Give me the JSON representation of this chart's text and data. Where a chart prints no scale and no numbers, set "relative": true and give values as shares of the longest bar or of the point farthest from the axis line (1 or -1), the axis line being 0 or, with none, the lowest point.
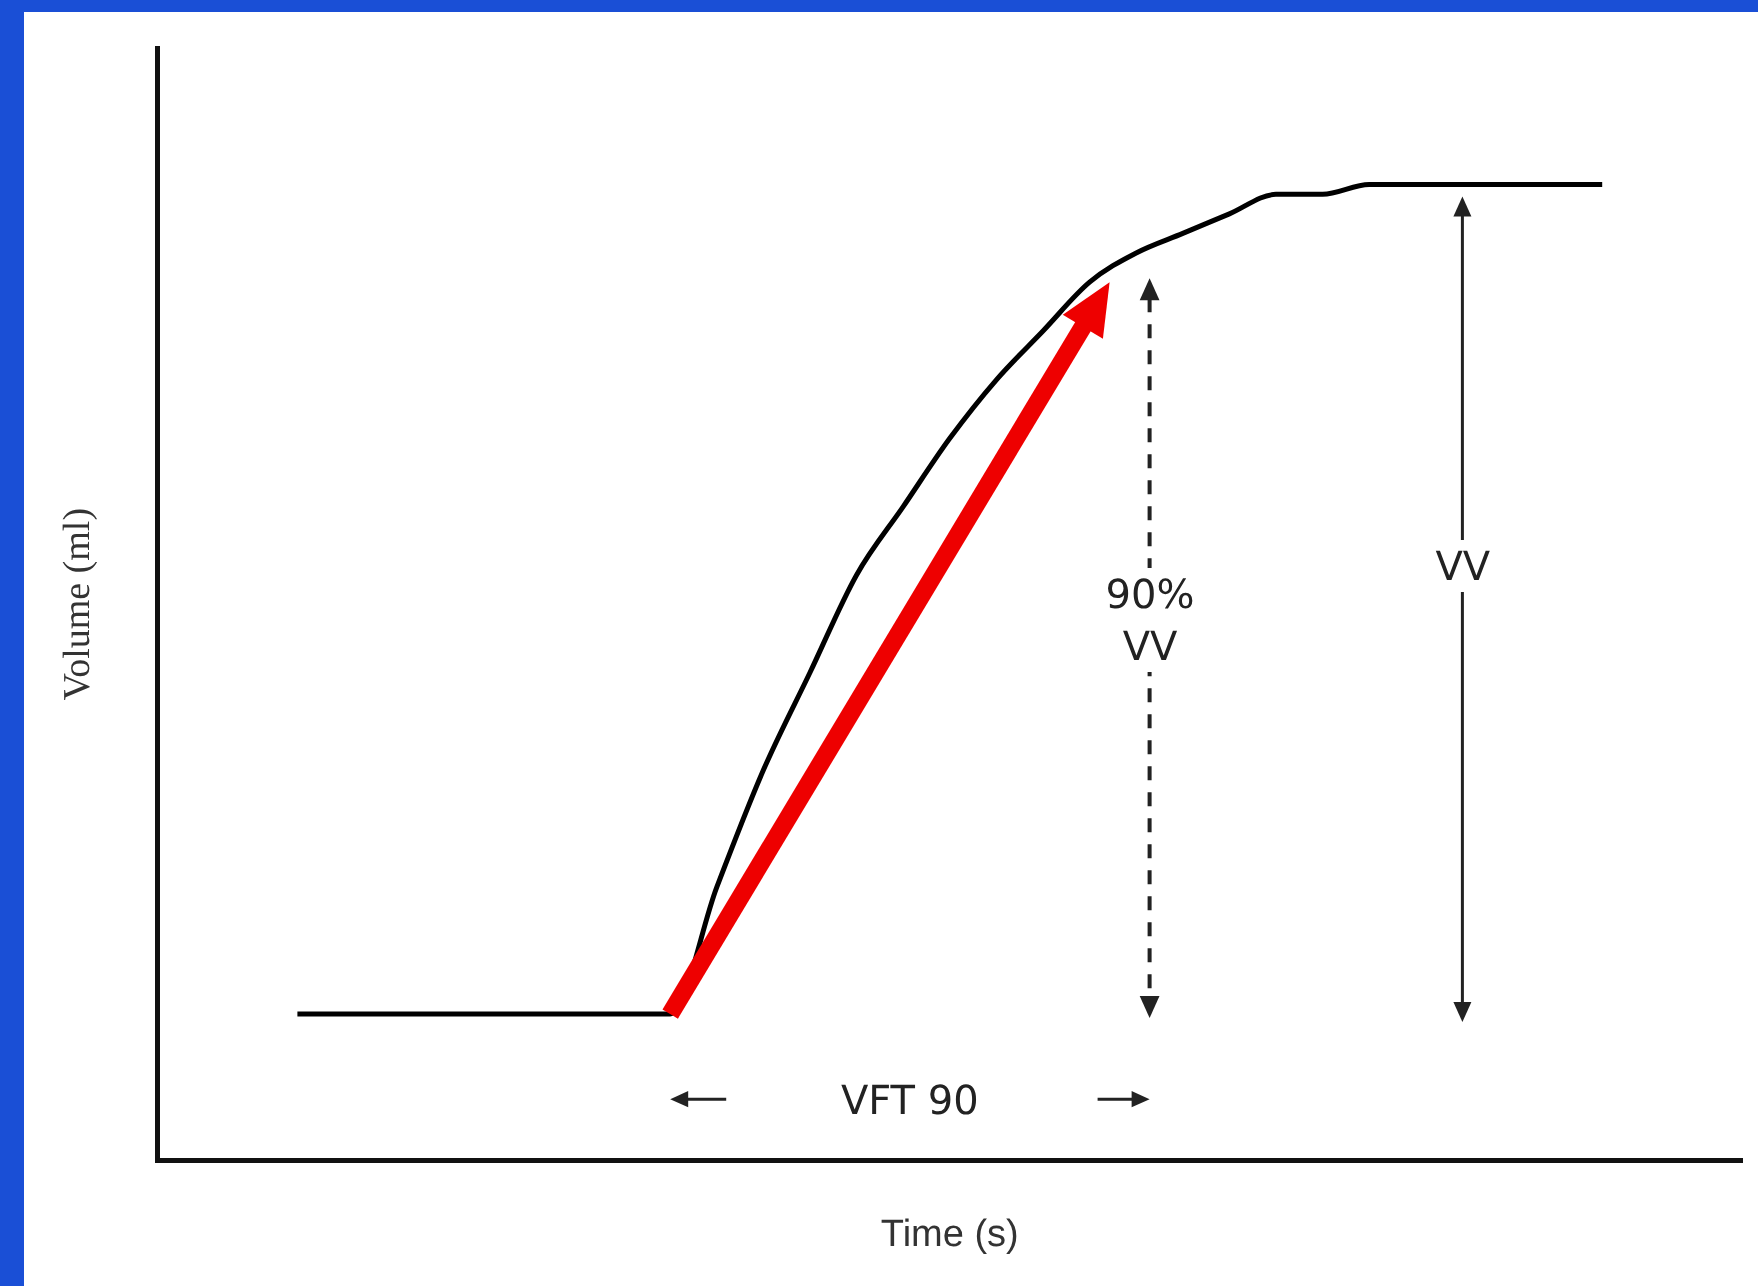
{
  "chart_data": {
    "type": "line",
    "relative": true,
    "xlabel": "Time (s)",
    "ylabel": "Volume (ml)",
    "categories": [
      null,
      null,
      null,
      null,
      null,
      null,
      null,
      null,
      null,
      null,
      null,
      null,
      null,
      null,
      null,
      null,
      null,
      null,
      null,
      null,
      null,
      null,
      null,
      null,
      null,
      null,
      null,
      null,
      null,
      null,
      null,
      null,
      null,
      null,
      null
    ],
    "series": [
      {
        "color": "#000000",
        "values": [
          null,
          null,
          null,
          0.15,
          0.15,
          0.15,
          0.15,
          0.15,
          0.15,
          0.15,
          0.15,
          0.15,
          0.28,
          0.4,
          0.5,
          0.6,
          0.67,
          0.74,
          0.8,
          0.85,
          0.9,
          0.93,
          0.95,
          0.97,
          0.99,
          0.99,
          1,
          1,
          1,
          1,
          1,
          1,
          null,
          null,
          null
        ]
      }
    ],
    "annotations": [
      "90%\nVV",
      "VV",
      "VFT 90"
    ],
    "grid": false,
    "legend": false,
    "marker": "none",
    "line_style": "solid"
  }
}
